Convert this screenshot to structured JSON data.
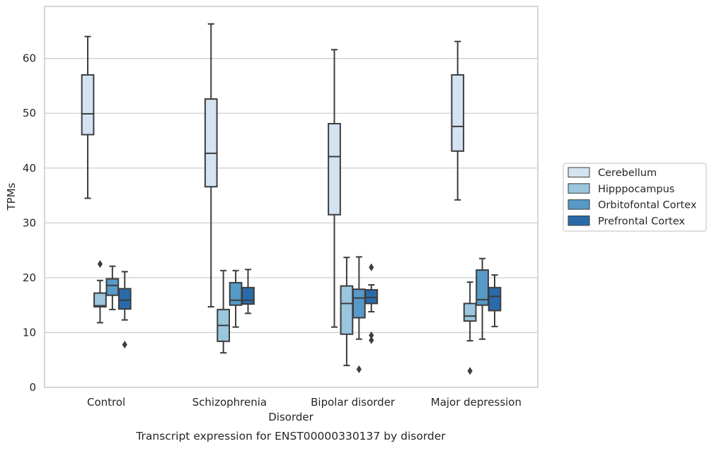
{
  "chart_data": {
    "type": "box",
    "title": "",
    "caption": "Transcript expression for ENST00000330137 by disorder",
    "xlabel": "Disorder",
    "ylabel": "TPMs",
    "ylim": [
      0,
      69.5
    ],
    "yticks": [
      0,
      10,
      20,
      30,
      40,
      50,
      60
    ],
    "grid": "horizontal",
    "legend_position": "right",
    "categories": [
      "Control",
      "Schizophrenia",
      "Bipolar disorder",
      "Major depression"
    ],
    "series": [
      {
        "name": "Cerebellum",
        "color": "#d4e3f2",
        "boxes": [
          {
            "whisker_low": 34.5,
            "q1": 46.1,
            "median": 49.9,
            "q3": 57.0,
            "whisker_high": 64.0,
            "outliers": []
          },
          {
            "whisker_low": 14.7,
            "q1": 36.6,
            "median": 42.7,
            "q3": 52.6,
            "whisker_high": 66.3,
            "outliers": []
          },
          {
            "whisker_low": 11.0,
            "q1": 31.5,
            "median": 42.1,
            "q3": 48.1,
            "whisker_high": 61.6,
            "outliers": []
          },
          {
            "whisker_low": 34.2,
            "q1": 43.1,
            "median": 47.6,
            "q3": 57.0,
            "whisker_high": 63.1,
            "outliers": []
          }
        ]
      },
      {
        "name": "Hipppocampus",
        "color": "#9ac6de",
        "boxes": [
          {
            "whisker_low": 11.8,
            "q1": 14.7,
            "median": 14.9,
            "q3": 17.2,
            "whisker_high": 19.5,
            "outliers": [
              22.5
            ]
          },
          {
            "whisker_low": 6.3,
            "q1": 8.4,
            "median": 11.3,
            "q3": 14.2,
            "whisker_high": 21.3,
            "outliers": []
          },
          {
            "whisker_low": 4.0,
            "q1": 9.7,
            "median": 15.3,
            "q3": 18.5,
            "whisker_high": 23.7,
            "outliers": []
          },
          {
            "whisker_low": 8.5,
            "q1": 12.1,
            "median": 13.0,
            "q3": 15.3,
            "whisker_high": 19.2,
            "outliers": [
              3.0
            ]
          }
        ]
      },
      {
        "name": "Orbitofontal Cortex",
        "color": "#5799c7",
        "boxes": [
          {
            "whisker_low": 14.2,
            "q1": 16.8,
            "median": 18.6,
            "q3": 19.8,
            "whisker_high": 22.1,
            "outliers": []
          },
          {
            "whisker_low": 11.0,
            "q1": 15.0,
            "median": 15.9,
            "q3": 19.1,
            "whisker_high": 21.3,
            "outliers": []
          },
          {
            "whisker_low": 8.8,
            "q1": 12.7,
            "median": 16.3,
            "q3": 17.9,
            "whisker_high": 23.8,
            "outliers": [
              3.3
            ]
          },
          {
            "whisker_low": 8.8,
            "q1": 15.0,
            "median": 16.0,
            "q3": 21.4,
            "whisker_high": 23.5,
            "outliers": []
          }
        ]
      },
      {
        "name": "Prefrontal Cortex",
        "color": "#2a6aab",
        "boxes": [
          {
            "whisker_low": 12.3,
            "q1": 14.3,
            "median": 15.9,
            "q3": 18.0,
            "whisker_high": 21.1,
            "outliers": [
              7.8
            ]
          },
          {
            "whisker_low": 13.5,
            "q1": 15.2,
            "median": 15.9,
            "q3": 18.2,
            "whisker_high": 21.5,
            "outliers": []
          },
          {
            "whisker_low": 13.8,
            "q1": 15.3,
            "median": 16.4,
            "q3": 17.8,
            "whisker_high": 18.7,
            "outliers": [
              21.9,
              9.5,
              8.6
            ]
          },
          {
            "whisker_low": 11.1,
            "q1": 14.0,
            "median": 16.6,
            "q3": 18.2,
            "whisker_high": 20.5,
            "outliers": []
          }
        ]
      }
    ]
  }
}
